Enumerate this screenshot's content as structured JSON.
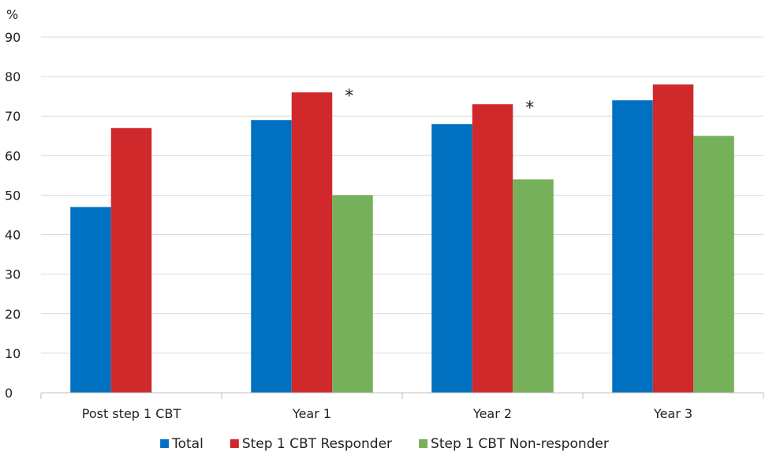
{
  "chart_data": {
    "type": "bar",
    "ylabel": "%",
    "ylim": [
      0,
      90
    ],
    "yticks": [
      0,
      10,
      20,
      30,
      40,
      50,
      60,
      70,
      80,
      90
    ],
    "grid": true,
    "legend_position": "bottom",
    "categories": [
      "Post step 1 CBT",
      "Year 1",
      "Year 2",
      "Year 3"
    ],
    "series": [
      {
        "name": "Total",
        "color": "#0070C0",
        "values": [
          47,
          69,
          68,
          74
        ]
      },
      {
        "name": "Step 1 CBT Responder",
        "color": "#D0292C",
        "values": [
          67,
          76,
          73,
          78
        ]
      },
      {
        "name": "Step 1 CBT Non-responder",
        "color": "#77B05A",
        "values": [
          null,
          50,
          54,
          65
        ]
      }
    ],
    "annotations": [
      {
        "text": "*",
        "category": "Year 1"
      },
      {
        "text": "*",
        "category": "Year 2"
      }
    ]
  }
}
